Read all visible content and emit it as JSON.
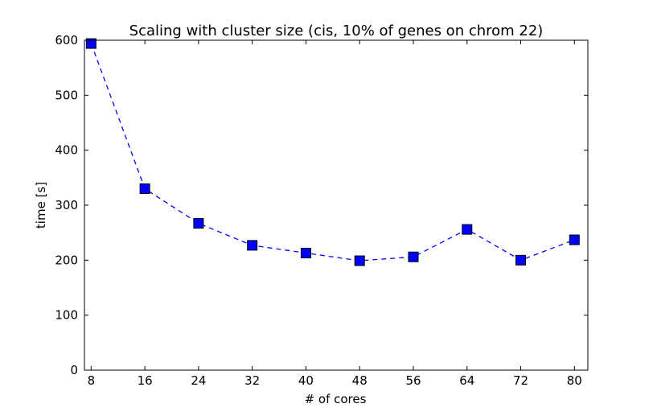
{
  "chart_data": {
    "type": "line",
    "title": "Scaling with cluster size (cis, 10% of genes on chrom 22)",
    "xlabel": "# of cores",
    "ylabel": "time [s]",
    "x": [
      8,
      16,
      24,
      32,
      40,
      48,
      56,
      64,
      72,
      80
    ],
    "xticks": [
      "8",
      "16",
      "24",
      "32",
      "40",
      "48",
      "56",
      "64",
      "72",
      "80"
    ],
    "xlim": [
      7,
      82
    ],
    "ylim": [
      0,
      600
    ],
    "yticks": [
      "0",
      "100",
      "200",
      "300",
      "400",
      "500",
      "600"
    ],
    "grid": false,
    "series": [
      {
        "values": [
          594,
          330,
          267,
          227,
          213,
          199,
          206,
          256,
          200,
          237
        ],
        "color": "#0000ff",
        "line_style": "dashed",
        "marker": "square"
      }
    ]
  }
}
